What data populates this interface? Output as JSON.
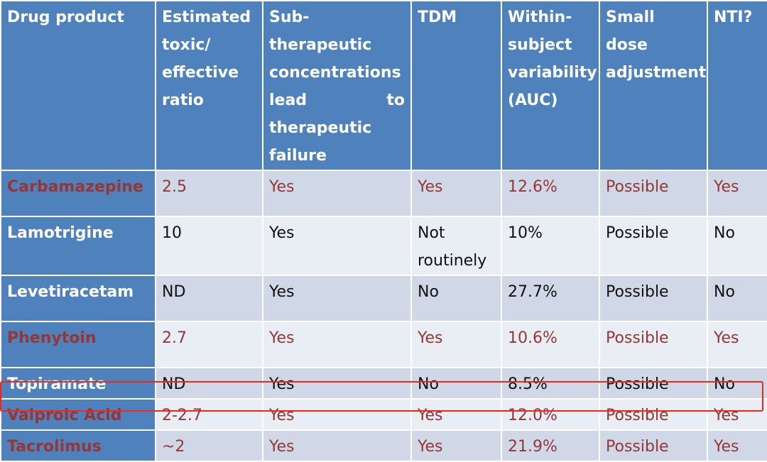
{
  "table": {
    "headers": [
      "Drug product",
      "Estimated toxic/ effective ratio",
      "Sub-therapeutic concentrations lead to therapeutic failure",
      "TDM",
      "Within-subject variability (AUC)",
      "Small dose adjustment",
      "NTI?"
    ],
    "rows": [
      {
        "drug": "Carbamazepine",
        "ratio": "2.5",
        "subther": "Yes",
        "tdm": "Yes",
        "variability": "12.6%",
        "dose": "Possible",
        "nti": "Yes"
      },
      {
        "drug": "Lamotrigine",
        "ratio": "10",
        "subther": "Yes",
        "tdm": "Not routinely",
        "variability": "10%",
        "dose": "Possible",
        "nti": "No"
      },
      {
        "drug": "Levetiracetam",
        "ratio": "ND",
        "subther": "Yes",
        "tdm": "No",
        "variability": "27.7%",
        "dose": "Possible",
        "nti": "No"
      },
      {
        "drug": "Phenytoin",
        "ratio": "2.7",
        "subther": "Yes",
        "tdm": "Yes",
        "variability": "10.6%",
        "dose": "Possible",
        "nti": "Yes"
      },
      {
        "drug": "Topiramate",
        "ratio": "ND",
        "subther": "Yes",
        "tdm": "No",
        "variability": "8.5%",
        "dose": "Possible",
        "nti": "No"
      },
      {
        "drug": "Valproic Acid",
        "ratio": "2-2.7",
        "subther": "Yes",
        "tdm": "Yes",
        "variability": "12.0%",
        "dose": "Possible",
        "nti": "Yes"
      },
      {
        "drug": "Tacrolimus",
        "ratio": "~2",
        "subther": "Yes",
        "tdm": "Yes",
        "variability": "21.9%",
        "dose": "Possible",
        "nti": "Yes"
      }
    ]
  },
  "colors": {
    "header_bg": "#4f81bd",
    "row_odd_bg": "#d0d8e8",
    "row_even_bg": "#e9edf4",
    "red_text": "#953735",
    "highlight_border": "#e8291c"
  }
}
